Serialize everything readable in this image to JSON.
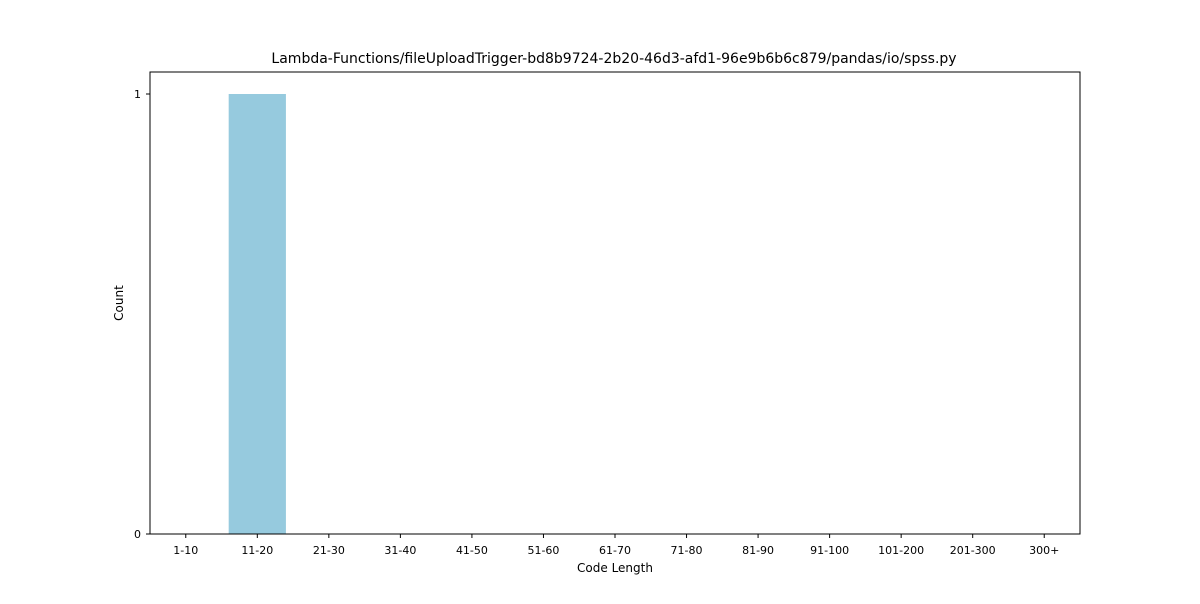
{
  "chart_data": {
    "type": "bar",
    "title": "Lambda-Functions/fileUploadTrigger-bd8b9724-2b20-46d3-afd1-96e9b6b6c879/pandas/io/spss.py",
    "xlabel": "Code Length",
    "ylabel": "Count",
    "categories": [
      "1-10",
      "11-20",
      "21-30",
      "31-40",
      "41-50",
      "51-60",
      "61-70",
      "71-80",
      "81-90",
      "91-100",
      "101-200",
      "201-300",
      "300+"
    ],
    "values": [
      0,
      1,
      0,
      0,
      0,
      0,
      0,
      0,
      0,
      0,
      0,
      0,
      0
    ],
    "ylim": [
      0,
      1.05
    ],
    "yticks": [
      0,
      1
    ],
    "bar_color": "#96cade",
    "grid": false,
    "legend": "none"
  }
}
